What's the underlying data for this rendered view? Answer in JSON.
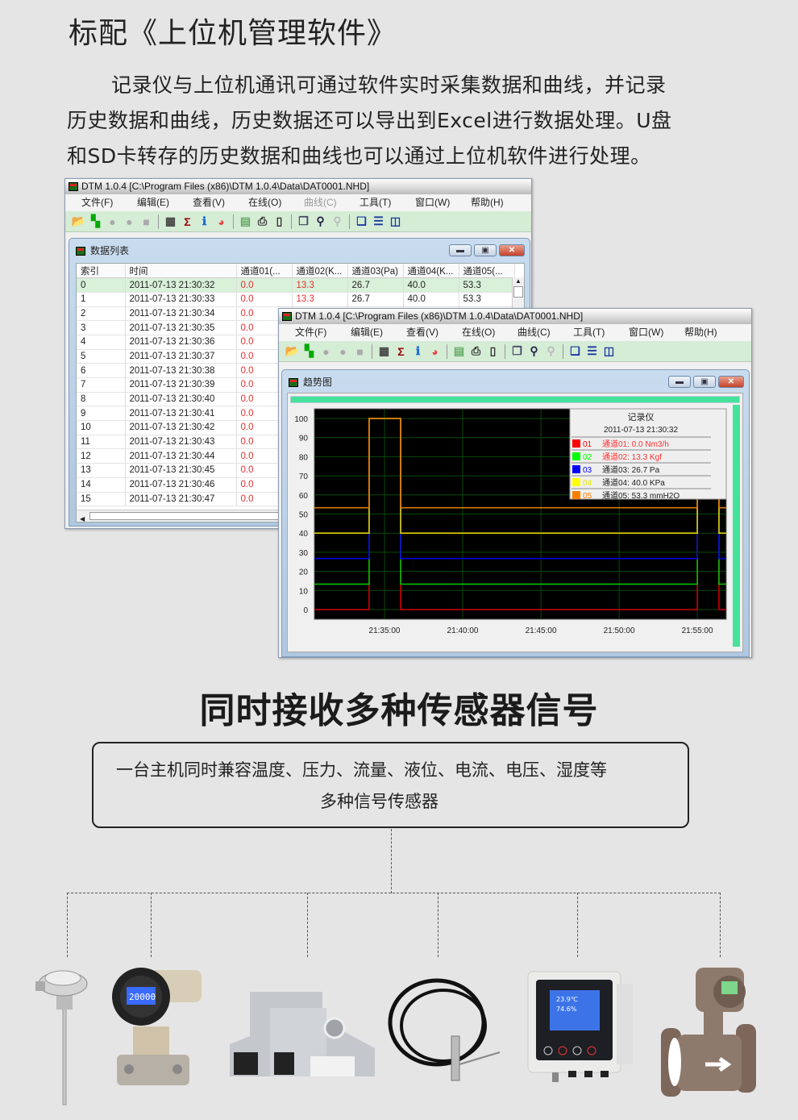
{
  "page": {
    "title": "标配《上位机管理软件》",
    "paragraph": [
      "记录仪与上位机通讯可通过软件实时采集数据和曲线，并记录",
      "历史数据和曲线，历史数据还可以导出到Excel进行数据处理。U盘",
      "和SD卡转存的历史数据和曲线也可以通过上位机软件进行处理。"
    ],
    "heading2": "同时接收多种传感器信号",
    "box_lines": [
      "一台主机同时兼容温度、压力、流量、液位、电流、电压、湿度等",
      "多种信号传感器"
    ]
  },
  "app": {
    "window_title": "DTM 1.0.4 [C:\\Program Files (x86)\\DTM 1.0.4\\Data\\DAT0001.NHD]",
    "menu": [
      {
        "label": "文件(F)"
      },
      {
        "label": "编辑(E)"
      },
      {
        "label": "查看(V)"
      },
      {
        "label": "在线(O)"
      },
      {
        "label": "曲线(C)"
      },
      {
        "label": "工具(T)"
      },
      {
        "label": "窗口(W)"
      },
      {
        "label": "帮助(H)"
      }
    ],
    "toolbar": [
      "open-folder-icon",
      "chart-icon",
      "record-icon",
      "pause-icon",
      "stop-icon",
      "|",
      "table-icon",
      "sigma-icon",
      "info-icon",
      "pie-icon",
      "|",
      "export-icon",
      "print-icon",
      "preview-icon",
      "|",
      "copy-icon",
      "zoom-icon",
      "zoom-disabled-icon",
      "|",
      "cascade-icon",
      "tile-horizontal-icon",
      "tile-vertical-icon"
    ]
  },
  "data_window": {
    "title": "数据列表",
    "columns": [
      "索引",
      "时间",
      "通道01(...",
      "通道02(K...",
      "通道03(Pa)",
      "通道04(K...",
      "通道05(..."
    ],
    "rows": [
      [
        "0",
        "2011-07-13 21:30:32",
        "0.0",
        "13.3",
        "26.7",
        "40.0",
        "53.3"
      ],
      [
        "1",
        "2011-07-13 21:30:33",
        "0.0",
        "13.3",
        "26.7",
        "40.0",
        "53.3"
      ],
      [
        "2",
        "2011-07-13 21:30:34",
        "0.0"
      ],
      [
        "3",
        "2011-07-13 21:30:35",
        "0.0"
      ],
      [
        "4",
        "2011-07-13 21:30:36",
        "0.0"
      ],
      [
        "5",
        "2011-07-13 21:30:37",
        "0.0"
      ],
      [
        "6",
        "2011-07-13 21:30:38",
        "0.0"
      ],
      [
        "7",
        "2011-07-13 21:30:39",
        "0.0"
      ],
      [
        "8",
        "2011-07-13 21:30:40",
        "0.0"
      ],
      [
        "9",
        "2011-07-13 21:30:41",
        "0.0"
      ],
      [
        "10",
        "2011-07-13 21:30:42",
        "0.0"
      ],
      [
        "11",
        "2011-07-13 21:30:43",
        "0.0"
      ],
      [
        "12",
        "2011-07-13 21:30:44",
        "0.0"
      ],
      [
        "13",
        "2011-07-13 21:30:45",
        "0.0"
      ],
      [
        "14",
        "2011-07-13 21:30:46",
        "0.0"
      ],
      [
        "15",
        "2011-07-13 21:30:47",
        "0.0"
      ]
    ]
  },
  "trend_window": {
    "title": "趋势图"
  },
  "chart_data": {
    "type": "line",
    "ylim": [
      0,
      100
    ],
    "yticks": [
      0,
      10,
      20,
      30,
      40,
      50,
      60,
      70,
      80,
      90,
      100
    ],
    "xlim": [
      "21:30:31",
      "21:56:51"
    ],
    "xticks": [
      "21:35:00",
      "21:40:00",
      "21:45:00",
      "21:50:00",
      "21:55:00"
    ],
    "grid": true,
    "background": "#000000",
    "legend": {
      "position": "top-right",
      "title": "记录仪",
      "time": "2011-07-13 21:30:32",
      "entries": [
        {
          "code": "01",
          "text": "通道01: 0.0 Nm3/h",
          "color": "#ff0000",
          "text_color": "#ff3030"
        },
        {
          "code": "02",
          "text": "通道02: 13.3 Kgf",
          "color": "#00ff00",
          "text_color": "#ff3030"
        },
        {
          "code": "03",
          "text": "通道03: 26.7 Pa",
          "color": "#0000ff",
          "text_color": "#222222"
        },
        {
          "code": "04",
          "text": "通道04: 40.0 KPa",
          "color": "#ffff00",
          "text_color": "#222222"
        },
        {
          "code": "05",
          "text": "通道05: 53.3 mmH2O",
          "color": "#ff8000",
          "text_color": "#222222"
        }
      ]
    },
    "series": [
      {
        "color": "#d00000",
        "points": [
          [
            "21:30:31",
            0
          ],
          [
            "21:34:01",
            0
          ],
          [
            "21:34:01",
            100
          ],
          [
            "21:36:02",
            100
          ],
          [
            "21:36:02",
            0
          ],
          [
            "21:55:00",
            0
          ],
          [
            "21:55:00",
            100
          ],
          [
            "21:56:23",
            100
          ],
          [
            "21:56:23",
            0
          ],
          [
            "21:56:51",
            0
          ]
        ]
      },
      {
        "color": "#00c000",
        "points": [
          [
            "21:30:31",
            13.3
          ],
          [
            "21:34:01",
            13.3
          ],
          [
            "21:34:01",
            100
          ],
          [
            "21:36:02",
            100
          ],
          [
            "21:36:02",
            13.3
          ],
          [
            "21:55:00",
            13.3
          ],
          [
            "21:55:00",
            100
          ],
          [
            "21:56:23",
            100
          ],
          [
            "21:56:23",
            13.3
          ],
          [
            "21:56:51",
            13.3
          ]
        ]
      },
      {
        "color": "#0000e0",
        "points": [
          [
            "21:30:31",
            26.7
          ],
          [
            "21:34:01",
            26.7
          ],
          [
            "21:34:01",
            100
          ],
          [
            "21:36:02",
            100
          ],
          [
            "21:36:02",
            26.7
          ],
          [
            "21:55:00",
            26.7
          ],
          [
            "21:55:00",
            100
          ],
          [
            "21:56:23",
            100
          ],
          [
            "21:56:23",
            26.7
          ],
          [
            "21:56:51",
            26.7
          ]
        ]
      },
      {
        "color": "#e0d000",
        "points": [
          [
            "21:30:31",
            40
          ],
          [
            "21:34:01",
            40
          ],
          [
            "21:34:01",
            100
          ],
          [
            "21:36:02",
            100
          ],
          [
            "21:36:02",
            40
          ],
          [
            "21:55:00",
            40
          ],
          [
            "21:55:00",
            100
          ],
          [
            "21:56:23",
            100
          ],
          [
            "21:56:23",
            40
          ],
          [
            "21:56:51",
            40
          ]
        ]
      },
      {
        "color": "#e07800",
        "points": [
          [
            "21:30:31",
            53.3
          ],
          [
            "21:34:01",
            53.3
          ],
          [
            "21:34:01",
            100
          ],
          [
            "21:36:02",
            100
          ],
          [
            "21:36:02",
            53.3
          ],
          [
            "21:55:00",
            53.3
          ],
          [
            "21:55:00",
            100
          ],
          [
            "21:56:23",
            100
          ],
          [
            "21:56:23",
            53.3
          ],
          [
            "21:56:51",
            53.3
          ]
        ]
      }
    ]
  },
  "sensors": {
    "transmitter_display": "20000",
    "humidity_display": [
      "23.9℃",
      "74.6%"
    ]
  }
}
